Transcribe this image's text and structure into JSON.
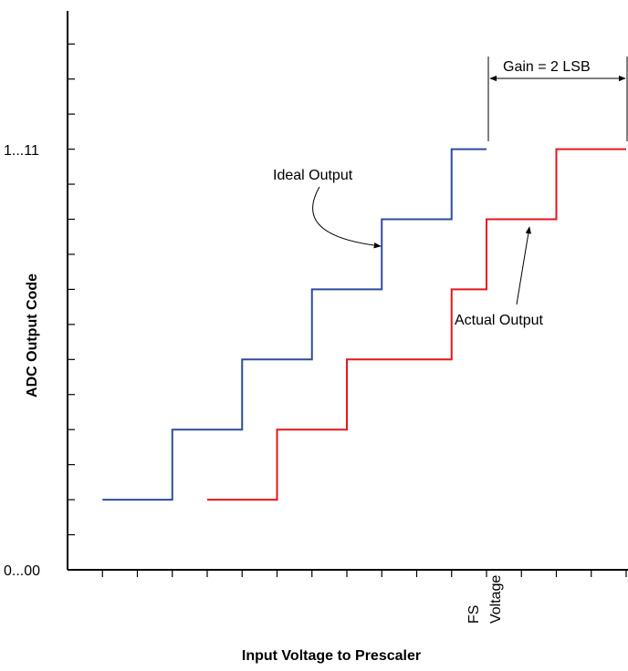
{
  "chart_data": {
    "type": "line",
    "xlabel": "Input Voltage to Prescaler",
    "ylabel": "ADC Output Code",
    "y_tick_labels": {
      "min": "0...00",
      "max": "1...11"
    },
    "x_annotation": {
      "line1": "FS",
      "line2": "Voltage"
    },
    "xlim": [
      0,
      16
    ],
    "ylim": [
      0,
      8
    ],
    "series": [
      {
        "key": "ideal",
        "name": "Ideal Output",
        "color": "#2E4C9E",
        "segments": [
          [
            1,
            3,
            1
          ],
          [
            3,
            5,
            2
          ],
          [
            5,
            7,
            3
          ],
          [
            7,
            9,
            4
          ],
          [
            9,
            11,
            5
          ],
          [
            11,
            12,
            6
          ]
        ]
      },
      {
        "key": "actual",
        "name": "Actual Output",
        "color": "#E8141C",
        "segments": [
          [
            4,
            6,
            1
          ],
          [
            6,
            8,
            2
          ],
          [
            8,
            11,
            3
          ],
          [
            11,
            12,
            4
          ],
          [
            12,
            14,
            5
          ],
          [
            14,
            16,
            6
          ]
        ]
      }
    ],
    "annotations": {
      "gain_label": "Gain = 2 LSB",
      "ideal_label": "Ideal Output",
      "actual_label": "Actual Output"
    }
  }
}
